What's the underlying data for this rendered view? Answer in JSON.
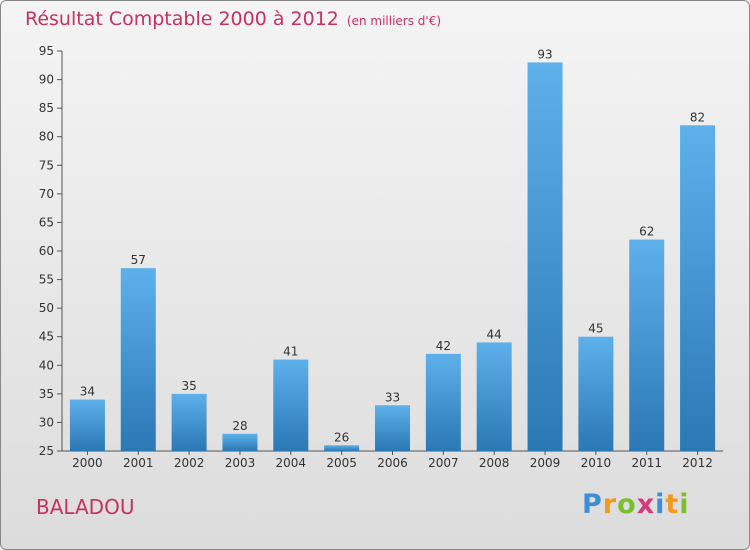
{
  "header": {
    "title": "Résultat Comptable 2000 à 2012",
    "subtitle": "(en milliers d'€)"
  },
  "footer": {
    "city": "BALADOU",
    "logo": "Proxiti"
  },
  "colors": {
    "title": "#c8315f",
    "bar_light": "#5eb0ea",
    "bar_dark": "#2a78b4"
  },
  "chart_data": {
    "type": "bar",
    "title": "Résultat Comptable 2000 à 2012",
    "subtitle": "(en milliers d'€)",
    "xlabel": "",
    "ylabel": "",
    "categories": [
      "2000",
      "2001",
      "2002",
      "2003",
      "2004",
      "2005",
      "2006",
      "2007",
      "2008",
      "2009",
      "2010",
      "2011",
      "2012"
    ],
    "values": [
      34,
      57,
      35,
      28,
      41,
      26,
      33,
      42,
      44,
      93,
      45,
      62,
      82
    ],
    "ylim": [
      25,
      95
    ],
    "yticks": [
      25,
      30,
      35,
      40,
      45,
      50,
      55,
      60,
      65,
      70,
      75,
      80,
      85,
      90,
      95
    ],
    "grid": false,
    "legend": "none"
  }
}
